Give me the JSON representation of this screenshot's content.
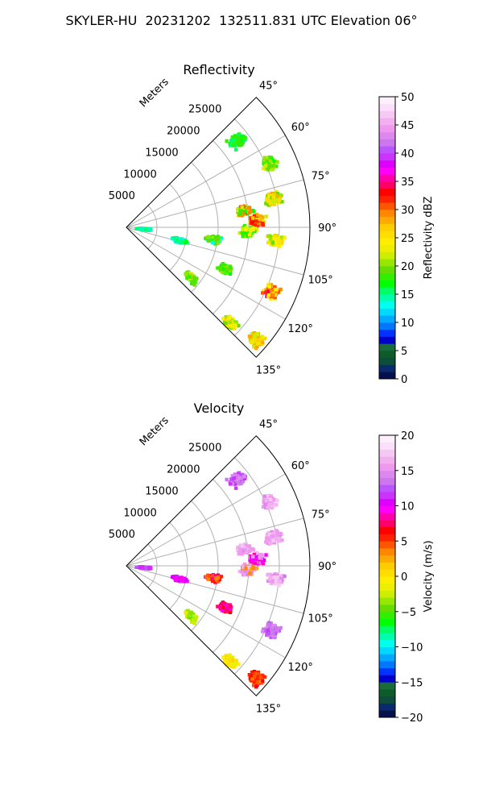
{
  "figure_title": "SKYLER-HU  20231202  132511.831 UTC Elevation 06°",
  "chart_data": [
    {
      "type": "heatmap",
      "projection": "polar-sector",
      "title": "Reflectivity",
      "radial_axis_label": "Meters",
      "range_ticks": [
        "5000",
        "10000",
        "15000",
        "20000",
        "25000"
      ],
      "range_tick_values": [
        5000,
        10000,
        15000,
        20000,
        25000
      ],
      "range_max": 30000,
      "azimuth_ticks": [
        "45°",
        "60°",
        "75°",
        "90°",
        "105°",
        "120°",
        "135°"
      ],
      "azimuth_tick_values": [
        45,
        60,
        75,
        90,
        105,
        120,
        135
      ],
      "azimuth_range": [
        45,
        135
      ],
      "grid": true,
      "colorbar": {
        "label": "Reflectivity dBZ",
        "min": 0,
        "max": 50,
        "ticks": [
          "0",
          "5",
          "10",
          "15",
          "20",
          "25",
          "30",
          "35",
          "40",
          "45",
          "50"
        ],
        "tick_values": [
          0,
          5,
          10,
          15,
          20,
          25,
          30,
          35,
          40,
          45,
          50
        ],
        "colors": [
          "#05104d",
          "#0a2a6e",
          "#0d4d3a",
          "#0d5c2a",
          "#1a6b3a",
          "#0000cd",
          "#0033ff",
          "#0077ff",
          "#00aaff",
          "#00d8ff",
          "#00ffee",
          "#00ffaa",
          "#00ff66",
          "#00ff00",
          "#33ee00",
          "#66dd00",
          "#99e600",
          "#ccee00",
          "#eeee00",
          "#ffee00",
          "#ffdd00",
          "#ffcc00",
          "#ffaa00",
          "#ff8800",
          "#ff5500",
          "#ff2200",
          "#ff0000",
          "#ff0066",
          "#ff00aa",
          "#ff00ff",
          "#dd00ff",
          "#cc33ff",
          "#bb55ff",
          "#cc77ee",
          "#dd88ee",
          "#ee99ee",
          "#f2b0f0",
          "#f6c8f4",
          "#fae0f8",
          "#fdf0fc"
        ]
      },
      "echo_regions": [
        {
          "az": 52,
          "r": 23000,
          "values": [
            16,
            18
          ]
        },
        {
          "az": 66,
          "r": 25500,
          "values": [
            18,
            22,
            20
          ]
        },
        {
          "az": 79,
          "r": 24500,
          "values": [
            20,
            28,
            22,
            26
          ]
        },
        {
          "az": 82,
          "r": 19500,
          "values": [
            17,
            22,
            30
          ]
        },
        {
          "az": 87,
          "r": 21500,
          "values": [
            22,
            32,
            28
          ]
        },
        {
          "az": 92,
          "r": 20000,
          "values": [
            18,
            22,
            24
          ]
        },
        {
          "az": 95,
          "r": 24500,
          "values": [
            20,
            26,
            24
          ]
        },
        {
          "az": 98,
          "r": 14500,
          "values": [
            14,
            18,
            20
          ]
        },
        {
          "az": 104,
          "r": 9000,
          "values": [
            13,
            14,
            16
          ]
        },
        {
          "az": 114,
          "r": 26000,
          "values": [
            24,
            34,
            30
          ]
        },
        {
          "az": 113,
          "r": 17500,
          "values": [
            18,
            20
          ]
        },
        {
          "az": 128,
          "r": 13500,
          "values": [
            18,
            20,
            22
          ]
        },
        {
          "az": 133,
          "r": 23000,
          "values": [
            20,
            26,
            24
          ]
        },
        {
          "az": 131,
          "r": 28000,
          "values": [
            22,
            28,
            26
          ]
        },
        {
          "az": 96,
          "r": 3000,
          "values": [
            14,
            15
          ]
        }
      ]
    },
    {
      "type": "heatmap",
      "projection": "polar-sector",
      "title": "Velocity",
      "radial_axis_label": "Meters",
      "range_ticks": [
        "5000",
        "10000",
        "15000",
        "20000",
        "25000"
      ],
      "range_tick_values": [
        5000,
        10000,
        15000,
        20000,
        25000
      ],
      "range_max": 30000,
      "azimuth_ticks": [
        "45°",
        "60°",
        "75°",
        "90°",
        "105°",
        "120°",
        "135°"
      ],
      "azimuth_tick_values": [
        45,
        60,
        75,
        90,
        105,
        120,
        135
      ],
      "azimuth_range": [
        45,
        135
      ],
      "grid": true,
      "colorbar": {
        "label": "Velocity (m/s)",
        "min": -20,
        "max": 20,
        "ticks": [
          "−20",
          "−15",
          "−10",
          "−5",
          "0",
          "5",
          "10",
          "15",
          "20"
        ],
        "tick_values": [
          -20,
          -15,
          -10,
          -5,
          0,
          5,
          10,
          15,
          20
        ],
        "colors": [
          "#05104d",
          "#0a2a6e",
          "#0d4d3a",
          "#0d5c2a",
          "#1a6b3a",
          "#0000cd",
          "#0033ff",
          "#0077ff",
          "#00aaff",
          "#00d8ff",
          "#00ffee",
          "#00ffaa",
          "#00ff66",
          "#00ff00",
          "#33ee00",
          "#66dd00",
          "#99e600",
          "#ccee00",
          "#eeee00",
          "#ffee00",
          "#ffdd00",
          "#ffcc00",
          "#ffaa00",
          "#ff8800",
          "#ff5500",
          "#ff2200",
          "#ff0000",
          "#ff0066",
          "#ff00aa",
          "#ff00ff",
          "#dd00ff",
          "#cc33ff",
          "#bb55ff",
          "#cc77ee",
          "#dd88ee",
          "#ee99ee",
          "#f2b0f0",
          "#f6c8f4",
          "#fae0f8",
          "#fdf0fc"
        ]
      },
      "echo_regions": [
        {
          "az": 52,
          "r": 23000,
          "values": [
            12,
            14
          ]
        },
        {
          "az": 66,
          "r": 25500,
          "values": [
            16,
            15,
            17
          ]
        },
        {
          "az": 79,
          "r": 24500,
          "values": [
            16,
            15,
            17,
            16
          ]
        },
        {
          "az": 82,
          "r": 19500,
          "values": [
            15,
            17,
            16
          ]
        },
        {
          "az": 87,
          "r": 21500,
          "values": [
            10,
            9,
            16
          ]
        },
        {
          "az": 92,
          "r": 20000,
          "values": [
            15,
            17,
            3
          ]
        },
        {
          "az": 95,
          "r": 24500,
          "values": [
            16,
            15,
            17
          ]
        },
        {
          "az": 98,
          "r": 14500,
          "values": [
            6,
            8,
            4
          ]
        },
        {
          "az": 104,
          "r": 9000,
          "values": [
            9,
            11,
            10
          ]
        },
        {
          "az": 114,
          "r": 26000,
          "values": [
            13,
            12,
            14
          ]
        },
        {
          "az": 113,
          "r": 17500,
          "values": [
            7,
            9
          ]
        },
        {
          "az": 128,
          "r": 13500,
          "values": [
            -3,
            -2,
            -4
          ]
        },
        {
          "az": 133,
          "r": 23000,
          "values": [
            0,
            1,
            -1
          ]
        },
        {
          "az": 131,
          "r": 28000,
          "values": [
            5,
            6,
            4
          ]
        },
        {
          "az": 96,
          "r": 3000,
          "values": [
            11,
            12
          ]
        }
      ]
    }
  ]
}
